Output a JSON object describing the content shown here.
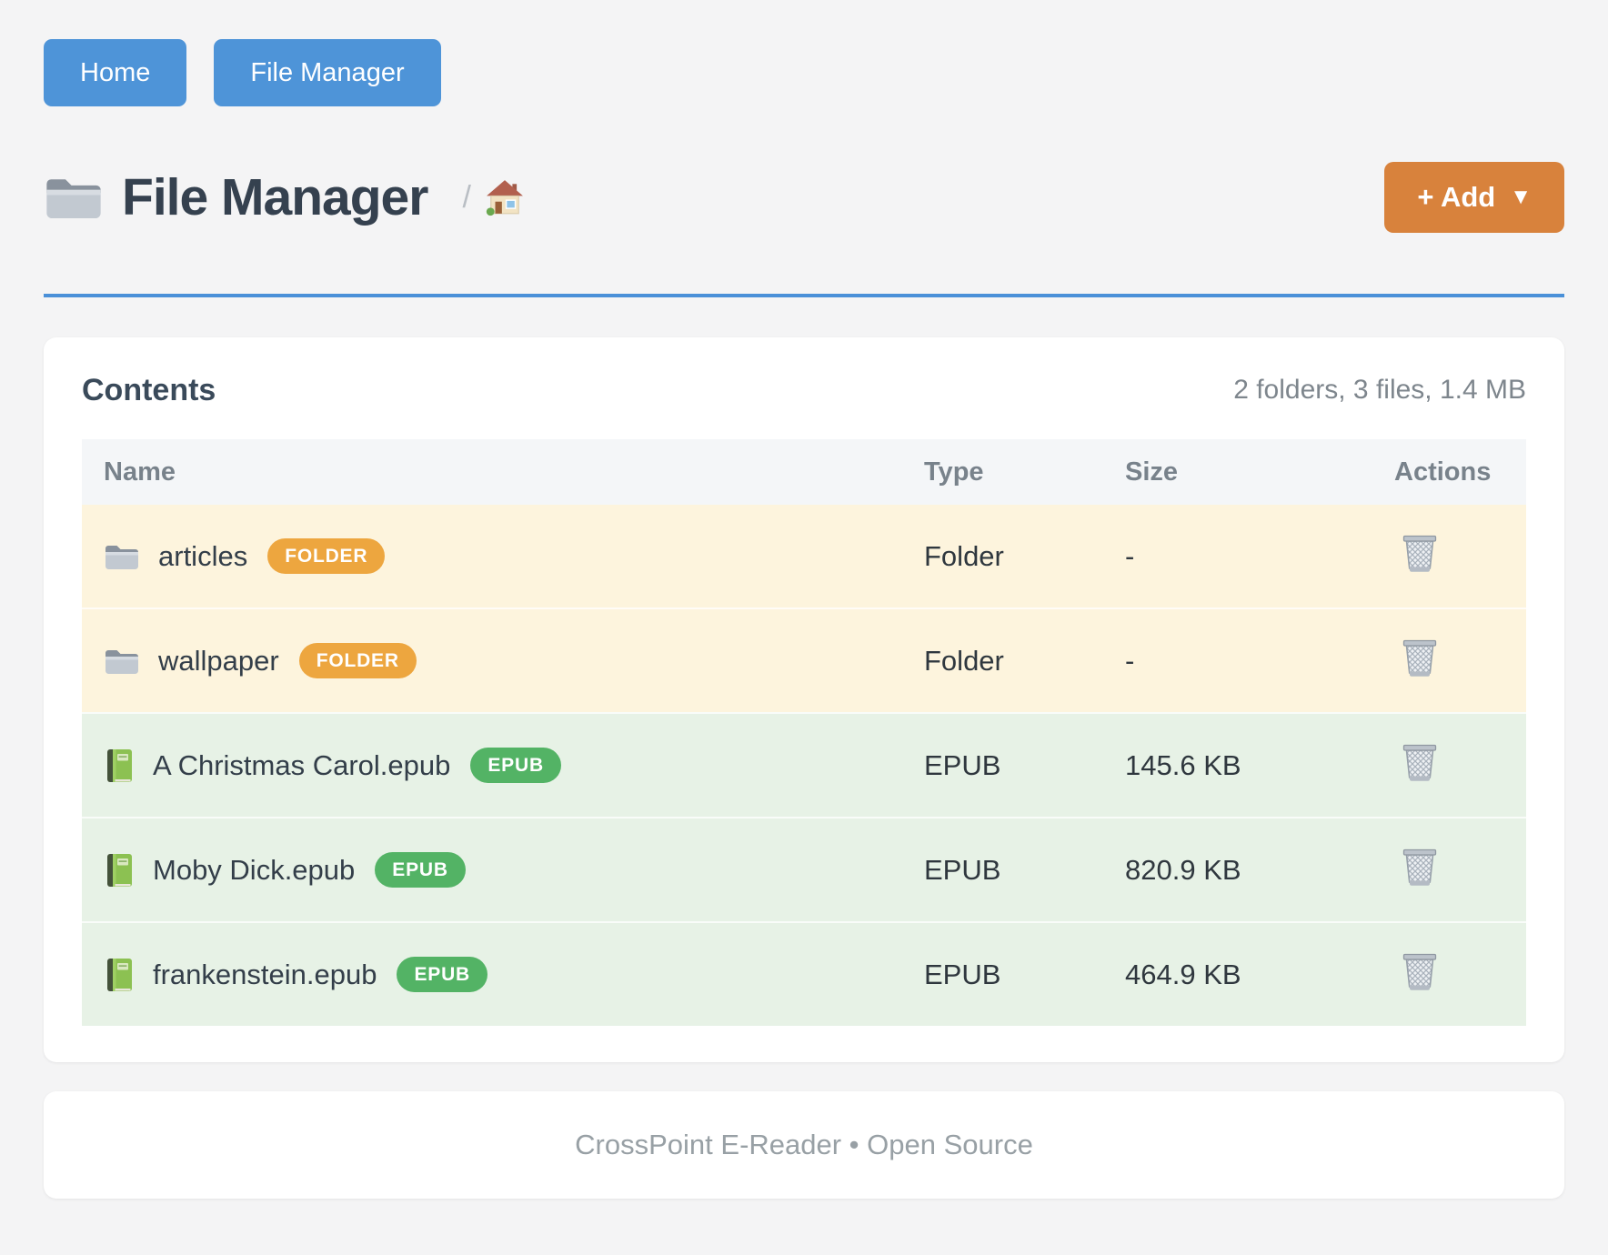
{
  "nav": {
    "buttons": [
      {
        "label": "Home"
      },
      {
        "label": "File Manager"
      }
    ],
    "button_color": "#4e94d8"
  },
  "header": {
    "title": "File Manager",
    "title_icon": "folder-icon",
    "breadcrumb_separator": "/",
    "breadcrumb_home_icon": "house-icon",
    "rule_color": "#4a90d8",
    "add_button": {
      "label": "+ Add",
      "caret": "▼",
      "color": "#d8823c"
    }
  },
  "contents_card": {
    "title": "Contents",
    "summary": "2 folders, 3 files, 1.4 MB",
    "table": {
      "columns": [
        "Name",
        "Type",
        "Size",
        "Actions"
      ],
      "row_colors": {
        "folder": "#fdf4dd",
        "file": "#e7f2e6"
      },
      "rows": [
        {
          "kind": "folder",
          "icon": "folder-icon",
          "name": "articles",
          "badge": "FOLDER",
          "badge_color": "#eda63f",
          "type": "Folder",
          "size": "-"
        },
        {
          "kind": "folder",
          "icon": "folder-icon",
          "name": "wallpaper",
          "badge": "FOLDER",
          "badge_color": "#eda63f",
          "type": "Folder",
          "size": "-"
        },
        {
          "kind": "file",
          "icon": "book-icon",
          "name": "A Christmas Carol.epub",
          "badge": "EPUB",
          "badge_color": "#53b365",
          "type": "EPUB",
          "size": "145.6 KB"
        },
        {
          "kind": "file",
          "icon": "book-icon",
          "name": "Moby Dick.epub",
          "badge": "EPUB",
          "badge_color": "#53b365",
          "type": "EPUB",
          "size": "820.9 KB"
        },
        {
          "kind": "file",
          "icon": "book-icon",
          "name": "frankenstein.epub",
          "badge": "EPUB",
          "badge_color": "#53b365",
          "type": "EPUB",
          "size": "464.9 KB"
        }
      ],
      "actions_icon": "wastebasket-icon"
    }
  },
  "footer": {
    "text": "CrossPoint E-Reader • Open Source"
  }
}
